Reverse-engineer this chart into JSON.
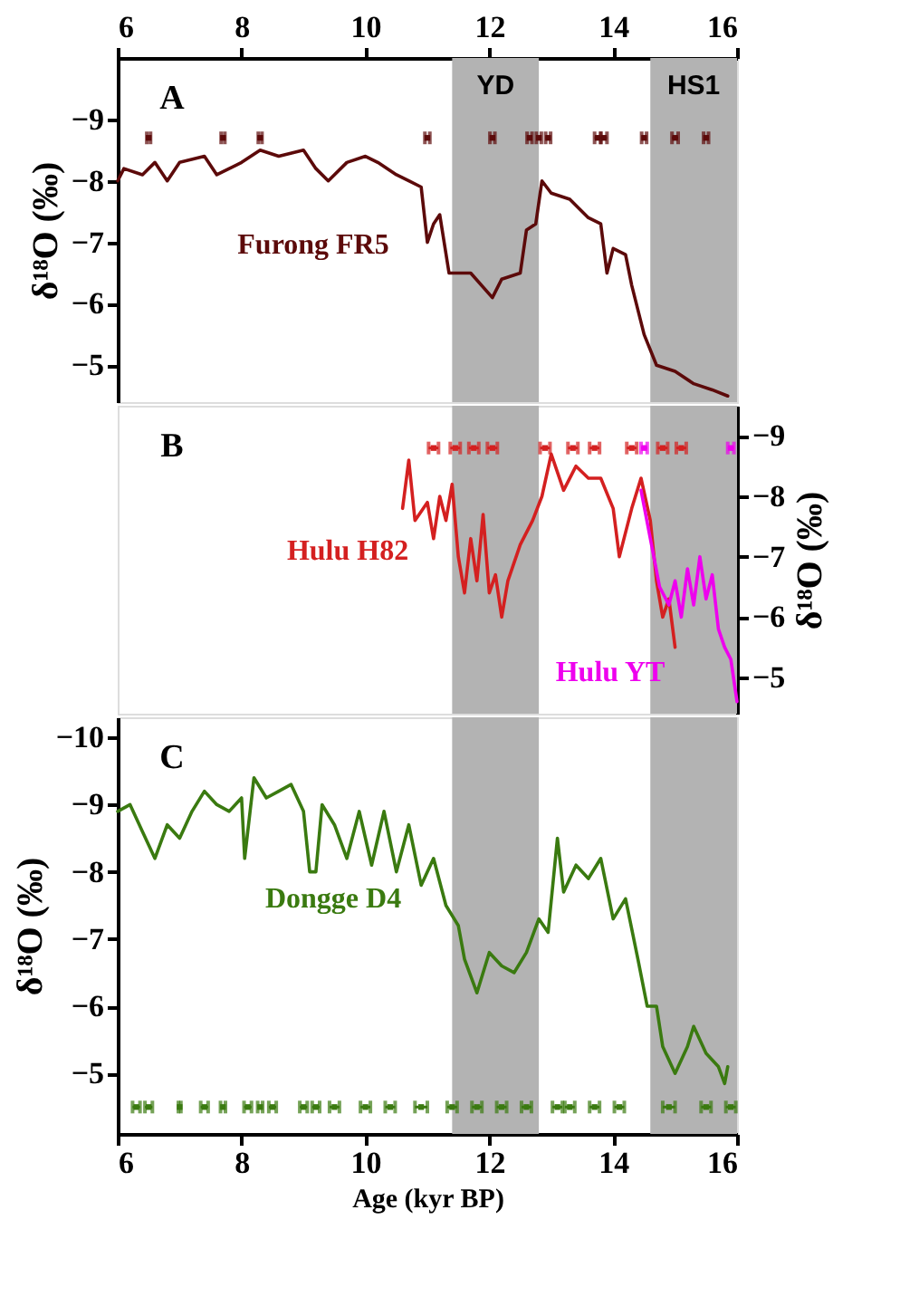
{
  "chart_data": [
    {
      "type": "line",
      "xlim": [
        6,
        16
      ],
      "xticks": [
        6,
        8,
        10,
        12,
        14,
        16
      ],
      "x2lim": [
        6,
        16
      ],
      "x2ticks": [
        6,
        8,
        10,
        12,
        14,
        16
      ],
      "ylim": [
        -4.4,
        -10
      ],
      "yticks": [
        -9,
        -8,
        -7,
        -6,
        -5
      ],
      "ylabel": "δ¹⁸O (‰)",
      "tick_labels": "y",
      "grid": false,
      "annotations": [
        "A"
      ],
      "bands": [
        {
          "axis": "x",
          "from": 11.4,
          "to": 12.8,
          "label": "YD",
          "color": "#b3b3b3"
        },
        {
          "axis": "x",
          "from": 14.6,
          "to": 16,
          "label": "HS1",
          "color": "#b3b3b3"
        }
      ],
      "series": [
        {
          "name": "Furong FR5",
          "color": "#5c0a0a",
          "x": [
            6.0,
            6.1,
            6.4,
            6.6,
            6.8,
            7.0,
            7.4,
            7.6,
            8.0,
            8.3,
            8.6,
            9.0,
            9.2,
            9.4,
            9.7,
            10.0,
            10.2,
            10.5,
            10.7,
            10.9,
            11.0,
            11.1,
            11.2,
            11.35,
            11.7,
            12.05,
            12.2,
            12.5,
            12.6,
            12.75,
            12.85,
            13.0,
            13.3,
            13.6,
            13.8,
            13.9,
            14.0,
            14.2,
            14.3,
            14.5,
            14.7,
            15.0,
            15.3,
            15.6,
            15.85
          ],
          "values": [
            -8.0,
            -8.2,
            -8.1,
            -8.3,
            -8.0,
            -8.3,
            -8.4,
            -8.1,
            -8.3,
            -8.5,
            -8.4,
            -8.5,
            -8.2,
            -8.0,
            -8.3,
            -8.4,
            -8.3,
            -8.1,
            -8.0,
            -7.9,
            -7.0,
            -7.3,
            -7.45,
            -6.5,
            -6.5,
            -6.1,
            -6.4,
            -6.5,
            -7.2,
            -7.3,
            -8.0,
            -7.8,
            -7.7,
            -7.4,
            -7.3,
            -6.5,
            -6.9,
            -6.8,
            -6.3,
            -5.5,
            -5.0,
            -4.9,
            -4.7,
            -4.6,
            -4.5
          ]
        },
        {
          "type": "scatter",
          "marker": "square",
          "color": "#5c0a0a",
          "x": [
            6.5,
            7.7,
            8.3,
            11.0,
            12.05,
            12.65,
            12.8,
            12.95,
            13.75,
            13.85,
            14.5,
            15.0,
            15.5
          ],
          "values": [
            -8.7,
            -8.7,
            -8.7,
            -8.7,
            -8.7,
            -8.7,
            -8.7,
            -8.7,
            -8.7,
            -8.7,
            -8.7,
            -8.7,
            -8.7
          ],
          "xerrors": [
            0.03,
            0.03,
            0.03,
            0.04,
            0.04,
            0.04,
            0.04,
            0.04,
            0.05,
            0.05,
            0.04,
            0.05,
            0.04
          ]
        }
      ]
    },
    {
      "type": "line",
      "xlim": [
        6,
        16
      ],
      "xticks": [
        6,
        8,
        10,
        12,
        14,
        16
      ],
      "y2lim": [
        -4.4,
        -9.5
      ],
      "y2ticks": [
        -9,
        -8,
        -7,
        -6,
        -5
      ],
      "y2label": "δ¹⁸O (‰)",
      "tick_labels": "y",
      "grid": false,
      "annotations": [
        "B"
      ],
      "bands": [
        {
          "axis": "x",
          "from": 11.4,
          "to": 12.8,
          "color": "#b3b3b3"
        },
        {
          "axis": "x",
          "from": 14.6,
          "to": 16,
          "color": "#b3b3b3"
        }
      ],
      "series": [
        {
          "name": "Hulu H82",
          "axis": "y2",
          "color": "#d42020",
          "x": [
            10.6,
            10.7,
            10.8,
            11.0,
            11.1,
            11.2,
            11.3,
            11.4,
            11.5,
            11.6,
            11.7,
            11.8,
            11.9,
            12.0,
            12.1,
            12.2,
            12.3,
            12.5,
            12.7,
            12.85,
            13.0,
            13.2,
            13.4,
            13.6,
            13.8,
            14.0,
            14.1,
            14.3,
            14.45,
            14.6,
            14.7,
            14.8,
            14.9,
            15.0
          ],
          "values": [
            -7.8,
            -8.6,
            -7.6,
            -7.9,
            -7.3,
            -8.0,
            -7.6,
            -8.2,
            -7.0,
            -6.4,
            -7.3,
            -6.6,
            -7.7,
            -6.4,
            -6.7,
            -6.0,
            -6.6,
            -7.2,
            -7.6,
            -8.0,
            -8.7,
            -8.1,
            -8.5,
            -8.3,
            -8.3,
            -7.8,
            -7.0,
            -7.8,
            -8.3,
            -7.6,
            -6.6,
            -6.0,
            -6.3,
            -5.5
          ]
        },
        {
          "name": "Hulu YT",
          "axis": "y2",
          "color": "#ee00ee",
          "x": [
            14.45,
            14.6,
            14.75,
            14.9,
            15.0,
            15.1,
            15.2,
            15.3,
            15.4,
            15.5,
            15.6,
            15.7,
            15.8,
            15.9,
            16.0
          ],
          "values": [
            -8.1,
            -7.3,
            -6.5,
            -6.2,
            -6.6,
            -6.0,
            -6.8,
            -6.2,
            -7.0,
            -6.3,
            -6.7,
            -5.8,
            -5.5,
            -5.3,
            -4.6
          ]
        },
        {
          "type": "scatter",
          "axis": "y2",
          "marker": "square",
          "color": "#d42020",
          "x": [
            11.1,
            11.45,
            11.75,
            12.05,
            12.9,
            13.35,
            13.7,
            14.3,
            14.8,
            15.1
          ],
          "values": [
            -8.8,
            -8.8,
            -8.8,
            -8.8,
            -8.8,
            -8.8,
            -8.8,
            -8.8,
            -8.8,
            -8.8
          ],
          "xerrors": [
            0.08,
            0.08,
            0.08,
            0.08,
            0.08,
            0.08,
            0.08,
            0.08,
            0.08,
            0.08
          ]
        },
        {
          "type": "scatter",
          "axis": "y2",
          "marker": "square",
          "color": "#ee00ee",
          "x": [
            14.5,
            15.9
          ],
          "values": [
            -8.8,
            -8.8
          ],
          "xerrors": [
            0.05,
            0.05
          ]
        }
      ]
    },
    {
      "type": "line",
      "xlim": [
        6,
        16
      ],
      "xticks": [
        6,
        8,
        10,
        12,
        14,
        16
      ],
      "ylim": [
        -4.1,
        -10.3
      ],
      "yticks": [
        -10,
        -9,
        -8,
        -7,
        -6,
        -5
      ],
      "ylabel": "δ¹⁸O (‰)",
      "xlabel": "Age (kyr BP)",
      "grid": false,
      "annotations": [
        "C"
      ],
      "bands": [
        {
          "axis": "x",
          "from": 11.4,
          "to": 12.8,
          "color": "#b3b3b3"
        },
        {
          "axis": "x",
          "from": 14.6,
          "to": 16,
          "color": "#b3b3b3"
        }
      ],
      "series": [
        {
          "name": "Dongge D4",
          "color": "#3a7a10",
          "x": [
            6.0,
            6.2,
            6.4,
            6.6,
            6.8,
            7.0,
            7.2,
            7.4,
            7.6,
            7.8,
            8.0,
            8.05,
            8.2,
            8.4,
            8.6,
            8.8,
            9.0,
            9.1,
            9.2,
            9.3,
            9.5,
            9.7,
            9.9,
            10.1,
            10.3,
            10.5,
            10.7,
            10.9,
            11.1,
            11.3,
            11.5,
            11.6,
            11.8,
            12.0,
            12.2,
            12.4,
            12.6,
            12.8,
            12.95,
            13.1,
            13.2,
            13.4,
            13.6,
            13.8,
            14.0,
            14.2,
            14.4,
            14.55,
            14.7,
            14.8,
            15.0,
            15.2,
            15.3,
            15.5,
            15.7,
            15.8,
            15.85
          ],
          "values": [
            -8.9,
            -9.0,
            -8.6,
            -8.2,
            -8.7,
            -8.5,
            -8.9,
            -9.2,
            -9.0,
            -8.9,
            -9.1,
            -8.2,
            -9.4,
            -9.1,
            -9.2,
            -9.3,
            -8.9,
            -8.0,
            -8.0,
            -9.0,
            -8.7,
            -8.2,
            -8.9,
            -8.1,
            -8.9,
            -8.0,
            -8.7,
            -7.8,
            -8.2,
            -7.5,
            -7.2,
            -6.7,
            -6.2,
            -6.8,
            -6.6,
            -6.5,
            -6.8,
            -7.3,
            -7.1,
            -8.5,
            -7.7,
            -8.1,
            -7.9,
            -8.2,
            -7.3,
            -7.6,
            -6.7,
            -6.0,
            -6.0,
            -5.4,
            -5.0,
            -5.4,
            -5.7,
            -5.3,
            -5.1,
            -4.85,
            -5.1
          ]
        },
        {
          "type": "scatter",
          "marker": "square",
          "color": "#3a7a10",
          "x": [
            6.3,
            6.5,
            7.0,
            7.4,
            7.7,
            8.1,
            8.3,
            8.5,
            9.0,
            9.2,
            9.5,
            10.0,
            10.4,
            10.9,
            11.4,
            11.8,
            12.2,
            12.6,
            13.1,
            13.3,
            13.7,
            14.1,
            14.9,
            15.5,
            15.9
          ],
          "values": [
            -4.5,
            -4.5,
            -4.5,
            -4.5,
            -4.5,
            -4.5,
            -4.5,
            -4.5,
            -4.5,
            -4.5,
            -4.5,
            -4.5,
            -4.5,
            -4.5,
            -4.5,
            -4.5,
            -4.5,
            -4.5,
            -4.5,
            -4.5,
            -4.5,
            -4.5,
            -4.5,
            -4.5,
            -4.5
          ],
          "xerrors": [
            0.06,
            0.06,
            0.02,
            0.06,
            0.04,
            0.06,
            0.04,
            0.06,
            0.06,
            0.06,
            0.08,
            0.08,
            0.08,
            0.1,
            0.08,
            0.08,
            0.08,
            0.08,
            0.08,
            0.08,
            0.08,
            0.08,
            0.1,
            0.08,
            0.08
          ]
        }
      ]
    }
  ]
}
